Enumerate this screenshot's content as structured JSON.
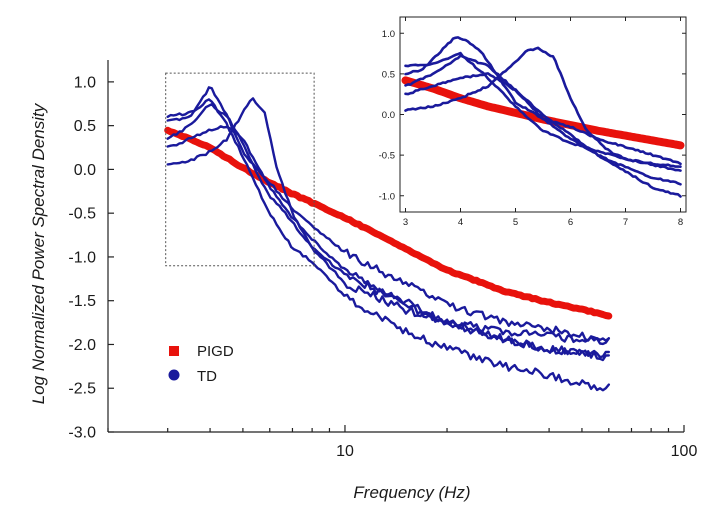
{
  "chart_data": [
    {
      "type": "line",
      "title": "",
      "xlabel": "Frequency (Hz)",
      "ylabel": "Log Normalized Power Spectral Density",
      "x_scale": "log",
      "xlim": [
        2,
        100
      ],
      "ylim": [
        -3.0,
        1.25
      ],
      "x_ticks": [
        "10",
        "100"
      ],
      "y_ticks": [
        "1.0",
        "0.5",
        "0.0",
        "-0.5",
        "-1.0",
        "-1.5",
        "-2.0",
        "-2.5",
        "-3.0"
      ],
      "grid": false,
      "legend": {
        "placement": "bottom-left",
        "entries": [
          {
            "label": "PIGD",
            "color": "#e8120c",
            "marker": "square"
          },
          {
            "label": "TD",
            "color": "#1a1a9c",
            "marker": "circle"
          }
        ]
      },
      "zoom_region": {
        "x": [
          3,
          8
        ],
        "y": [
          -1.1,
          1.1
        ]
      },
      "series": [
        {
          "group": "PIGD",
          "color": "#e8120c",
          "x": [
            3,
            4,
            5,
            6,
            7,
            8,
            10,
            15,
            20,
            30,
            40,
            50,
            60
          ],
          "y": [
            0.45,
            0.25,
            0.02,
            -0.15,
            -0.28,
            -0.38,
            -0.55,
            -0.9,
            -1.15,
            -1.4,
            -1.52,
            -1.6,
            -1.67
          ]
        },
        {
          "group": "TD",
          "color": "#1a1a9c",
          "x": [
            3,
            3.5,
            4,
            4.5,
            5,
            5.5,
            6,
            7,
            8,
            10,
            15,
            20,
            30,
            40,
            50,
            60
          ],
          "y": [
            0.55,
            0.6,
            0.95,
            0.6,
            0.2,
            0.0,
            -0.15,
            -0.45,
            -0.65,
            -0.95,
            -1.3,
            -1.55,
            -1.75,
            -1.82,
            -1.9,
            -1.95
          ]
        },
        {
          "group": "TD",
          "color": "#1a1a9c",
          "x": [
            3,
            3.5,
            4,
            4.5,
            5,
            5.3,
            5.8,
            6.3,
            7,
            8,
            10,
            15,
            20,
            30,
            40,
            50,
            60
          ],
          "y": [
            0.05,
            0.1,
            0.2,
            0.35,
            0.65,
            0.82,
            0.65,
            0.0,
            -0.5,
            -0.9,
            -1.2,
            -1.55,
            -1.75,
            -1.95,
            -2.05,
            -2.1,
            -2.15
          ]
        },
        {
          "group": "TD",
          "color": "#1a1a9c",
          "x": [
            3,
            3.5,
            4,
            4.5,
            5,
            5.5,
            6,
            7,
            8,
            10,
            15,
            20,
            30,
            40,
            50,
            60
          ],
          "y": [
            0.25,
            0.35,
            0.45,
            0.5,
            0.35,
            0.05,
            -0.2,
            -0.55,
            -0.8,
            -1.15,
            -1.5,
            -1.75,
            -1.95,
            -2.05,
            -2.1,
            -2.12
          ]
        },
        {
          "group": "TD",
          "color": "#1a1a9c",
          "x": [
            3,
            3.5,
            4,
            4.5,
            5,
            5.5,
            6,
            7,
            8,
            10,
            15,
            20,
            30,
            40,
            50,
            60
          ],
          "y": [
            0.35,
            0.5,
            0.75,
            0.6,
            0.3,
            -0.05,
            -0.3,
            -0.6,
            -0.9,
            -1.3,
            -1.6,
            -1.75,
            -1.85,
            -1.9,
            -1.95,
            -1.95
          ]
        },
        {
          "group": "TD",
          "color": "#1a1a9c",
          "x": [
            3,
            3.5,
            4,
            4.5,
            5,
            5.5,
            6,
            7,
            8,
            10,
            15,
            20,
            30,
            40,
            50,
            60
          ],
          "y": [
            0.6,
            0.65,
            0.8,
            0.5,
            0.15,
            -0.2,
            -0.5,
            -0.9,
            -1.05,
            -1.45,
            -1.85,
            -2.05,
            -2.25,
            -2.35,
            -2.45,
            -2.5
          ]
        }
      ]
    },
    {
      "type": "line",
      "title": "",
      "xlabel": "",
      "ylabel": "",
      "xlim": [
        2.9,
        8.1
      ],
      "ylim": [
        -1.2,
        1.2
      ],
      "x_ticks": [
        "3",
        "4",
        "5",
        "6",
        "7",
        "8"
      ],
      "y_ticks": [
        "1.0",
        "0.5",
        "0.0",
        "-0.5",
        "-1.0"
      ],
      "grid": false,
      "placement": "top-right inset",
      "series": [
        {
          "group": "PIGD",
          "color": "#e8120c",
          "x": [
            3,
            3.5,
            4,
            4.5,
            5,
            5.5,
            6,
            6.5,
            7,
            7.5,
            8
          ],
          "y": [
            0.42,
            0.32,
            0.2,
            0.1,
            0.02,
            -0.06,
            -0.13,
            -0.2,
            -0.26,
            -0.32,
            -0.38
          ]
        },
        {
          "group": "TD",
          "color": "#1a1a9c",
          "x": [
            3,
            3.3,
            3.6,
            3.9,
            4.1,
            4.4,
            4.7,
            5,
            5.5,
            6,
            6.5,
            7,
            7.5,
            8
          ],
          "y": [
            0.5,
            0.55,
            0.75,
            0.95,
            0.92,
            0.75,
            0.45,
            0.15,
            -0.05,
            -0.15,
            -0.3,
            -0.4,
            -0.5,
            -0.6
          ]
        },
        {
          "group": "TD",
          "color": "#1a1a9c",
          "x": [
            3,
            3.5,
            4,
            4.5,
            5,
            5.2,
            5.4,
            5.7,
            6,
            6.3,
            6.7,
            7,
            7.5,
            8
          ],
          "y": [
            0.05,
            0.1,
            0.2,
            0.35,
            0.65,
            0.78,
            0.82,
            0.7,
            0.2,
            -0.2,
            -0.45,
            -0.55,
            -0.6,
            -0.65
          ]
        },
        {
          "group": "TD",
          "color": "#1a1a9c",
          "x": [
            3,
            3.5,
            4,
            4.5,
            5,
            5.5,
            6,
            6.5,
            7,
            7.5,
            8
          ],
          "y": [
            0.25,
            0.35,
            0.45,
            0.5,
            0.3,
            0.0,
            -0.25,
            -0.5,
            -0.65,
            -0.78,
            -0.85
          ]
        },
        {
          "group": "TD",
          "color": "#1a1a9c",
          "x": [
            3,
            3.5,
            4,
            4.5,
            5,
            5.5,
            6,
            6.5,
            7,
            7.5,
            8
          ],
          "y": [
            0.35,
            0.5,
            0.72,
            0.6,
            0.3,
            -0.05,
            -0.3,
            -0.5,
            -0.7,
            -0.9,
            -1.0
          ]
        },
        {
          "group": "TD",
          "color": "#1a1a9c",
          "x": [
            3,
            3.5,
            4,
            4.5,
            5,
            5.5,
            6,
            6.5,
            7,
            7.5,
            8
          ],
          "y": [
            0.6,
            0.62,
            0.75,
            0.45,
            0.1,
            -0.2,
            -0.35,
            -0.45,
            -0.55,
            -0.62,
            -0.7
          ]
        }
      ]
    }
  ]
}
